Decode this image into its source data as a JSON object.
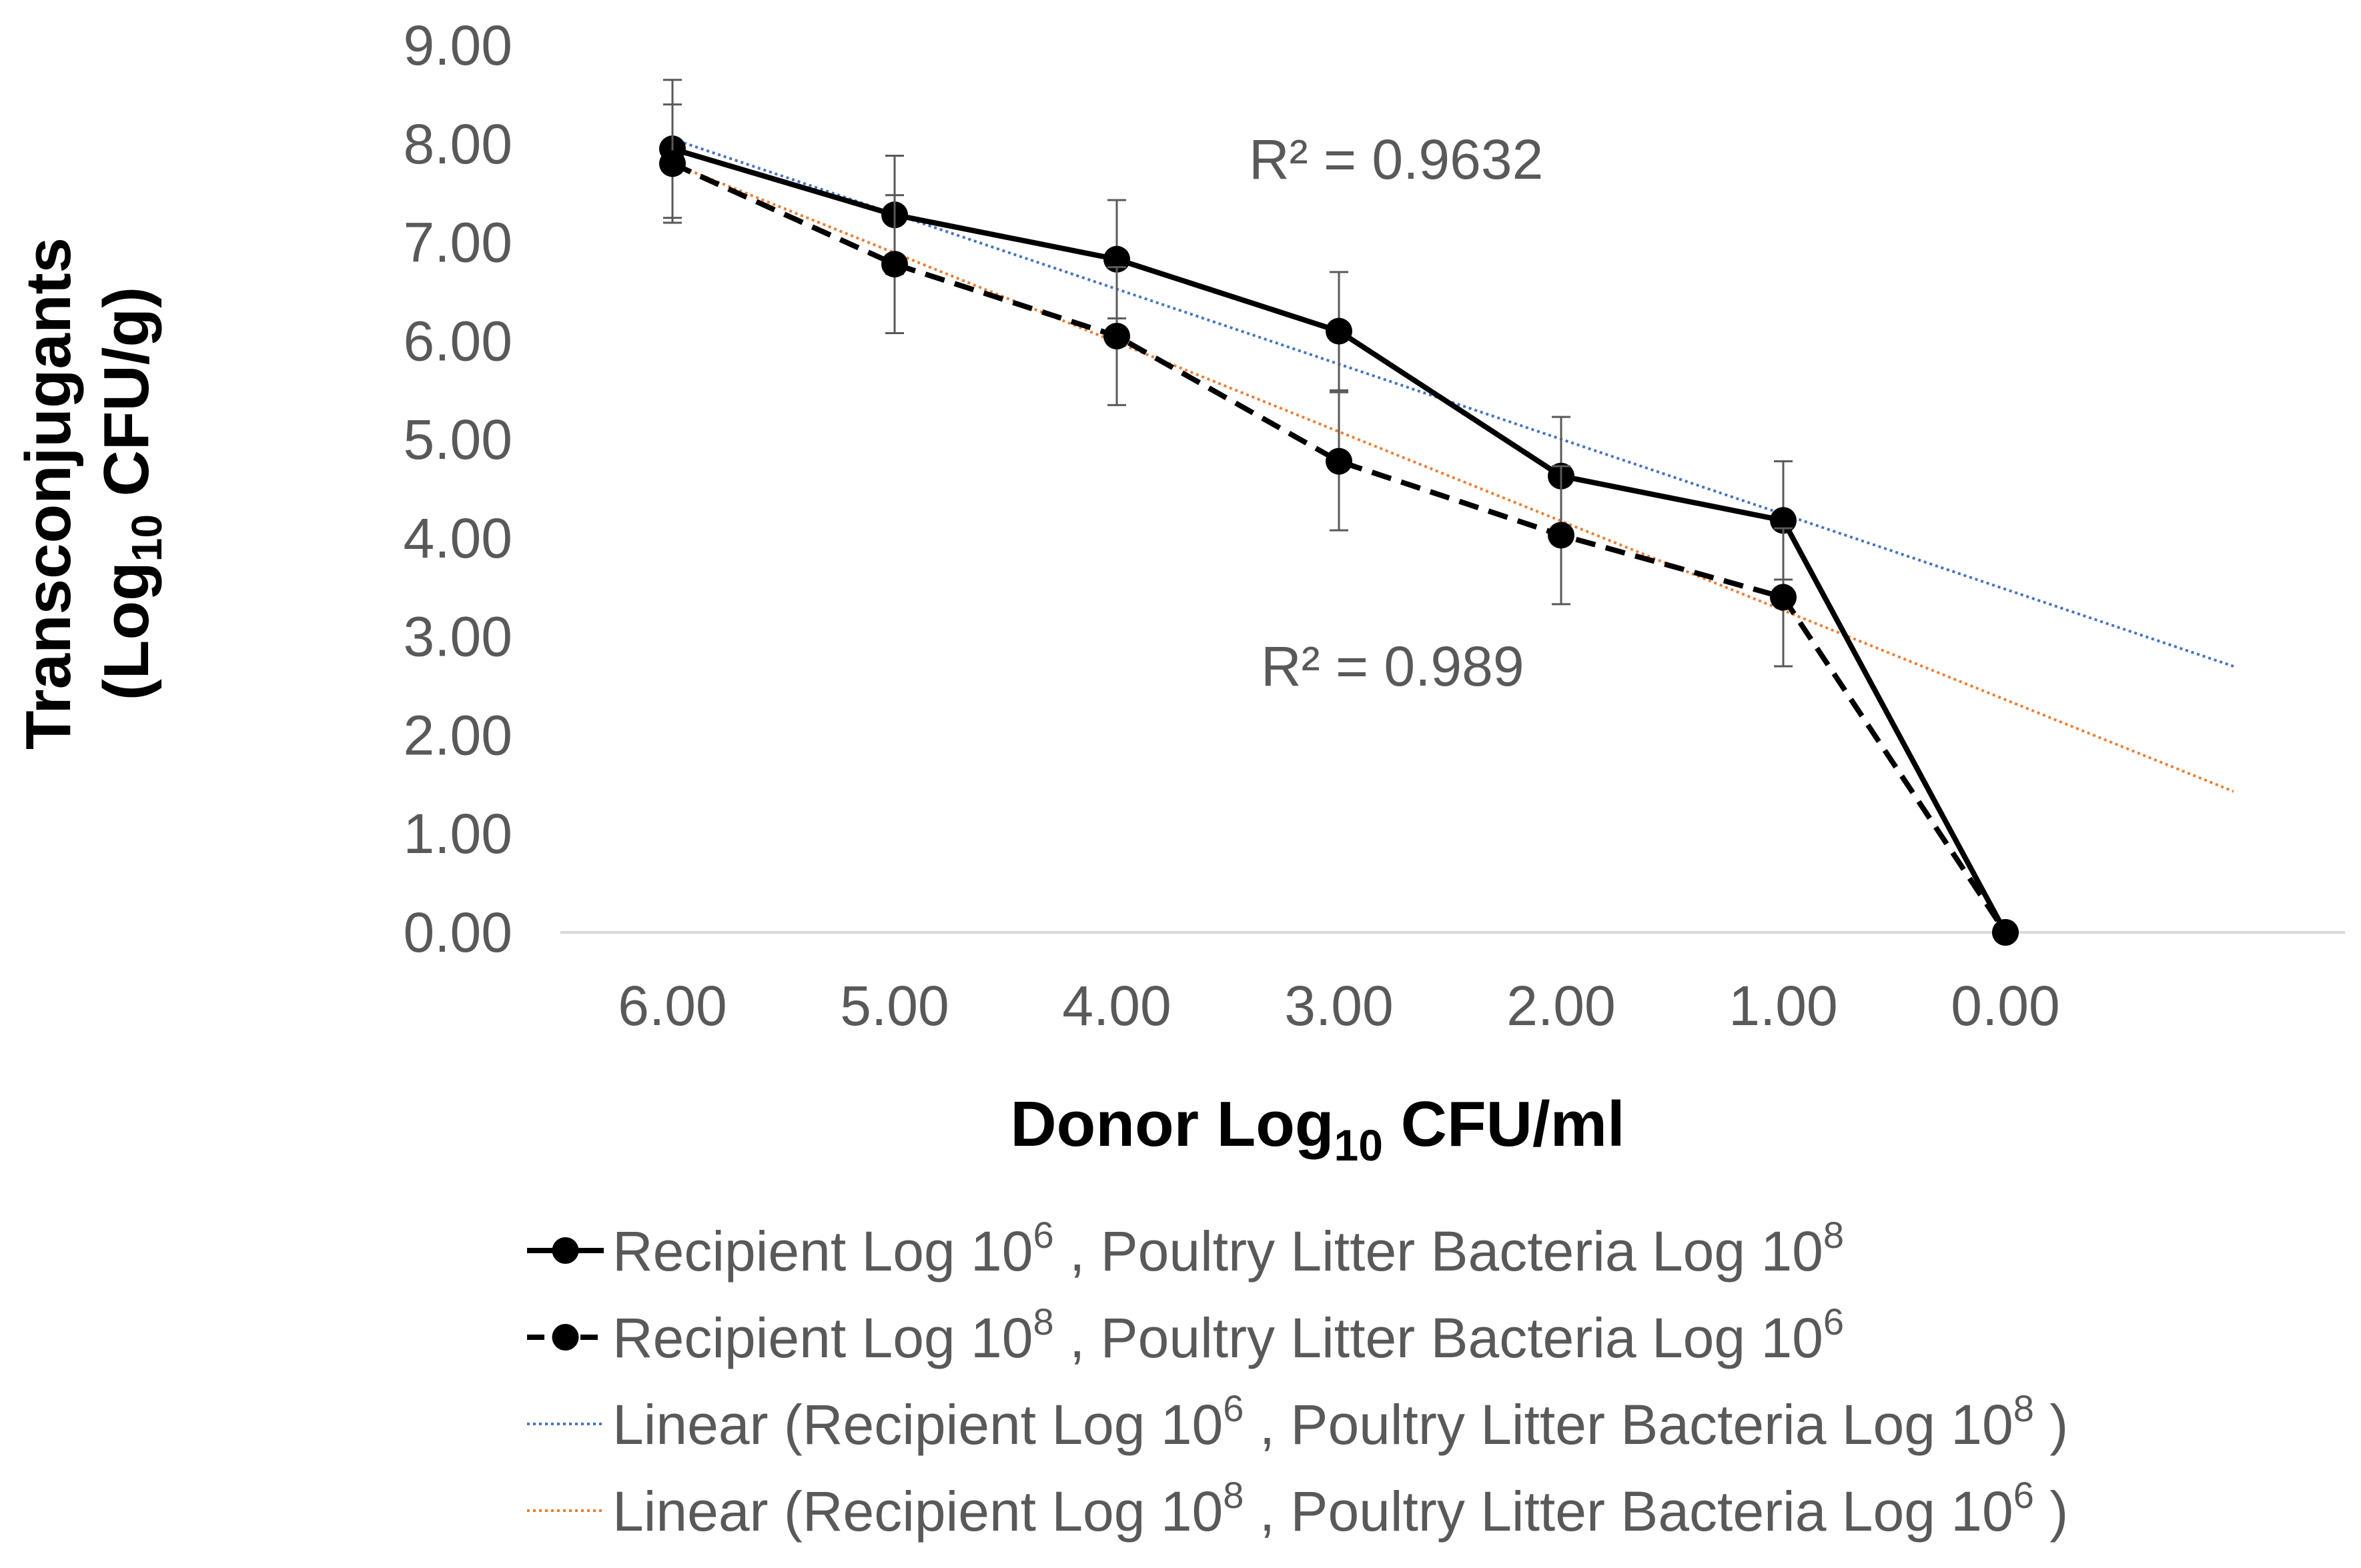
{
  "chart_data": {
    "type": "line",
    "title": "",
    "xlabel": {
      "main": "Donor Log",
      "sub": "10",
      "rest": " CFU/ml"
    },
    "ylabel": {
      "line1": "Transconjugants",
      "line2_pre": "(Log",
      "line2_sub": "10",
      "line2_post": " CFU/g)"
    },
    "ylim": [
      0,
      9
    ],
    "y_ticks": [
      "0.00",
      "1.00",
      "2.00",
      "3.00",
      "4.00",
      "5.00",
      "6.00",
      "7.00",
      "8.00",
      "9.00"
    ],
    "categories": [
      "6.00",
      "5.00",
      "4.00",
      "3.00",
      "2.00",
      "1.00",
      "0.00"
    ],
    "series": [
      {
        "name": "Recipient Log 10⁶ , Poultry Litter Bacteria Log 10⁸",
        "legend": {
          "pre": "Recipient Log 10",
          "sup1": "6",
          "mid": " , Poultry Litter Bacteria Log 10",
          "sup2": "8",
          "post": ""
        },
        "style": "solid",
        "color": "#000000",
        "values": [
          7.95,
          7.28,
          6.83,
          6.1,
          4.63,
          4.18,
          0.0
        ],
        "error": [
          0.7,
          0.6,
          0.6,
          0.6,
          0.6,
          0.6,
          0.0
        ]
      },
      {
        "name": "Recipient Log 10⁸ , Poultry Litter Bacteria Log 10⁶",
        "legend": {
          "pre": "Recipient Log 10",
          "sup1": "8",
          "mid": " , Poultry Litter Bacteria Log 10",
          "sup2": "6",
          "post": ""
        },
        "style": "dashed",
        "color": "#000000",
        "values": [
          7.8,
          6.78,
          6.05,
          4.78,
          4.03,
          3.4,
          0.0
        ],
        "error": [
          0.6,
          0.7,
          0.7,
          0.7,
          0.7,
          0.7,
          0.0
        ]
      }
    ],
    "trendlines": [
      {
        "name": "Linear (Recipient Log 10⁶ , Poultry Litter Bacteria Log 10⁸ )",
        "legend": {
          "pre": "Linear (Recipient Log 10",
          "sup1": "6",
          "mid": " , Poultry Litter Bacteria Log 10",
          "sup2": "8",
          "post": " )"
        },
        "color": "#4472C4",
        "start_value": 8.05,
        "end_value": 2.7,
        "r2_label": "R² = 0.9632"
      },
      {
        "name": "Linear (Recipient Log 10⁸ , Poultry Litter Bacteria Log 10⁶ )",
        "legend": {
          "pre": "Linear (Recipient Log 10",
          "sup1": "8",
          "mid": " , Poultry Litter Bacteria Log 10",
          "sup2": "6",
          "post": " )"
        },
        "color": "#ED7D31",
        "start_value": 7.8,
        "end_value": 1.43,
        "r2_label": "R² = 0.989"
      }
    ],
    "legend_position": "bottom",
    "grid": false
  }
}
